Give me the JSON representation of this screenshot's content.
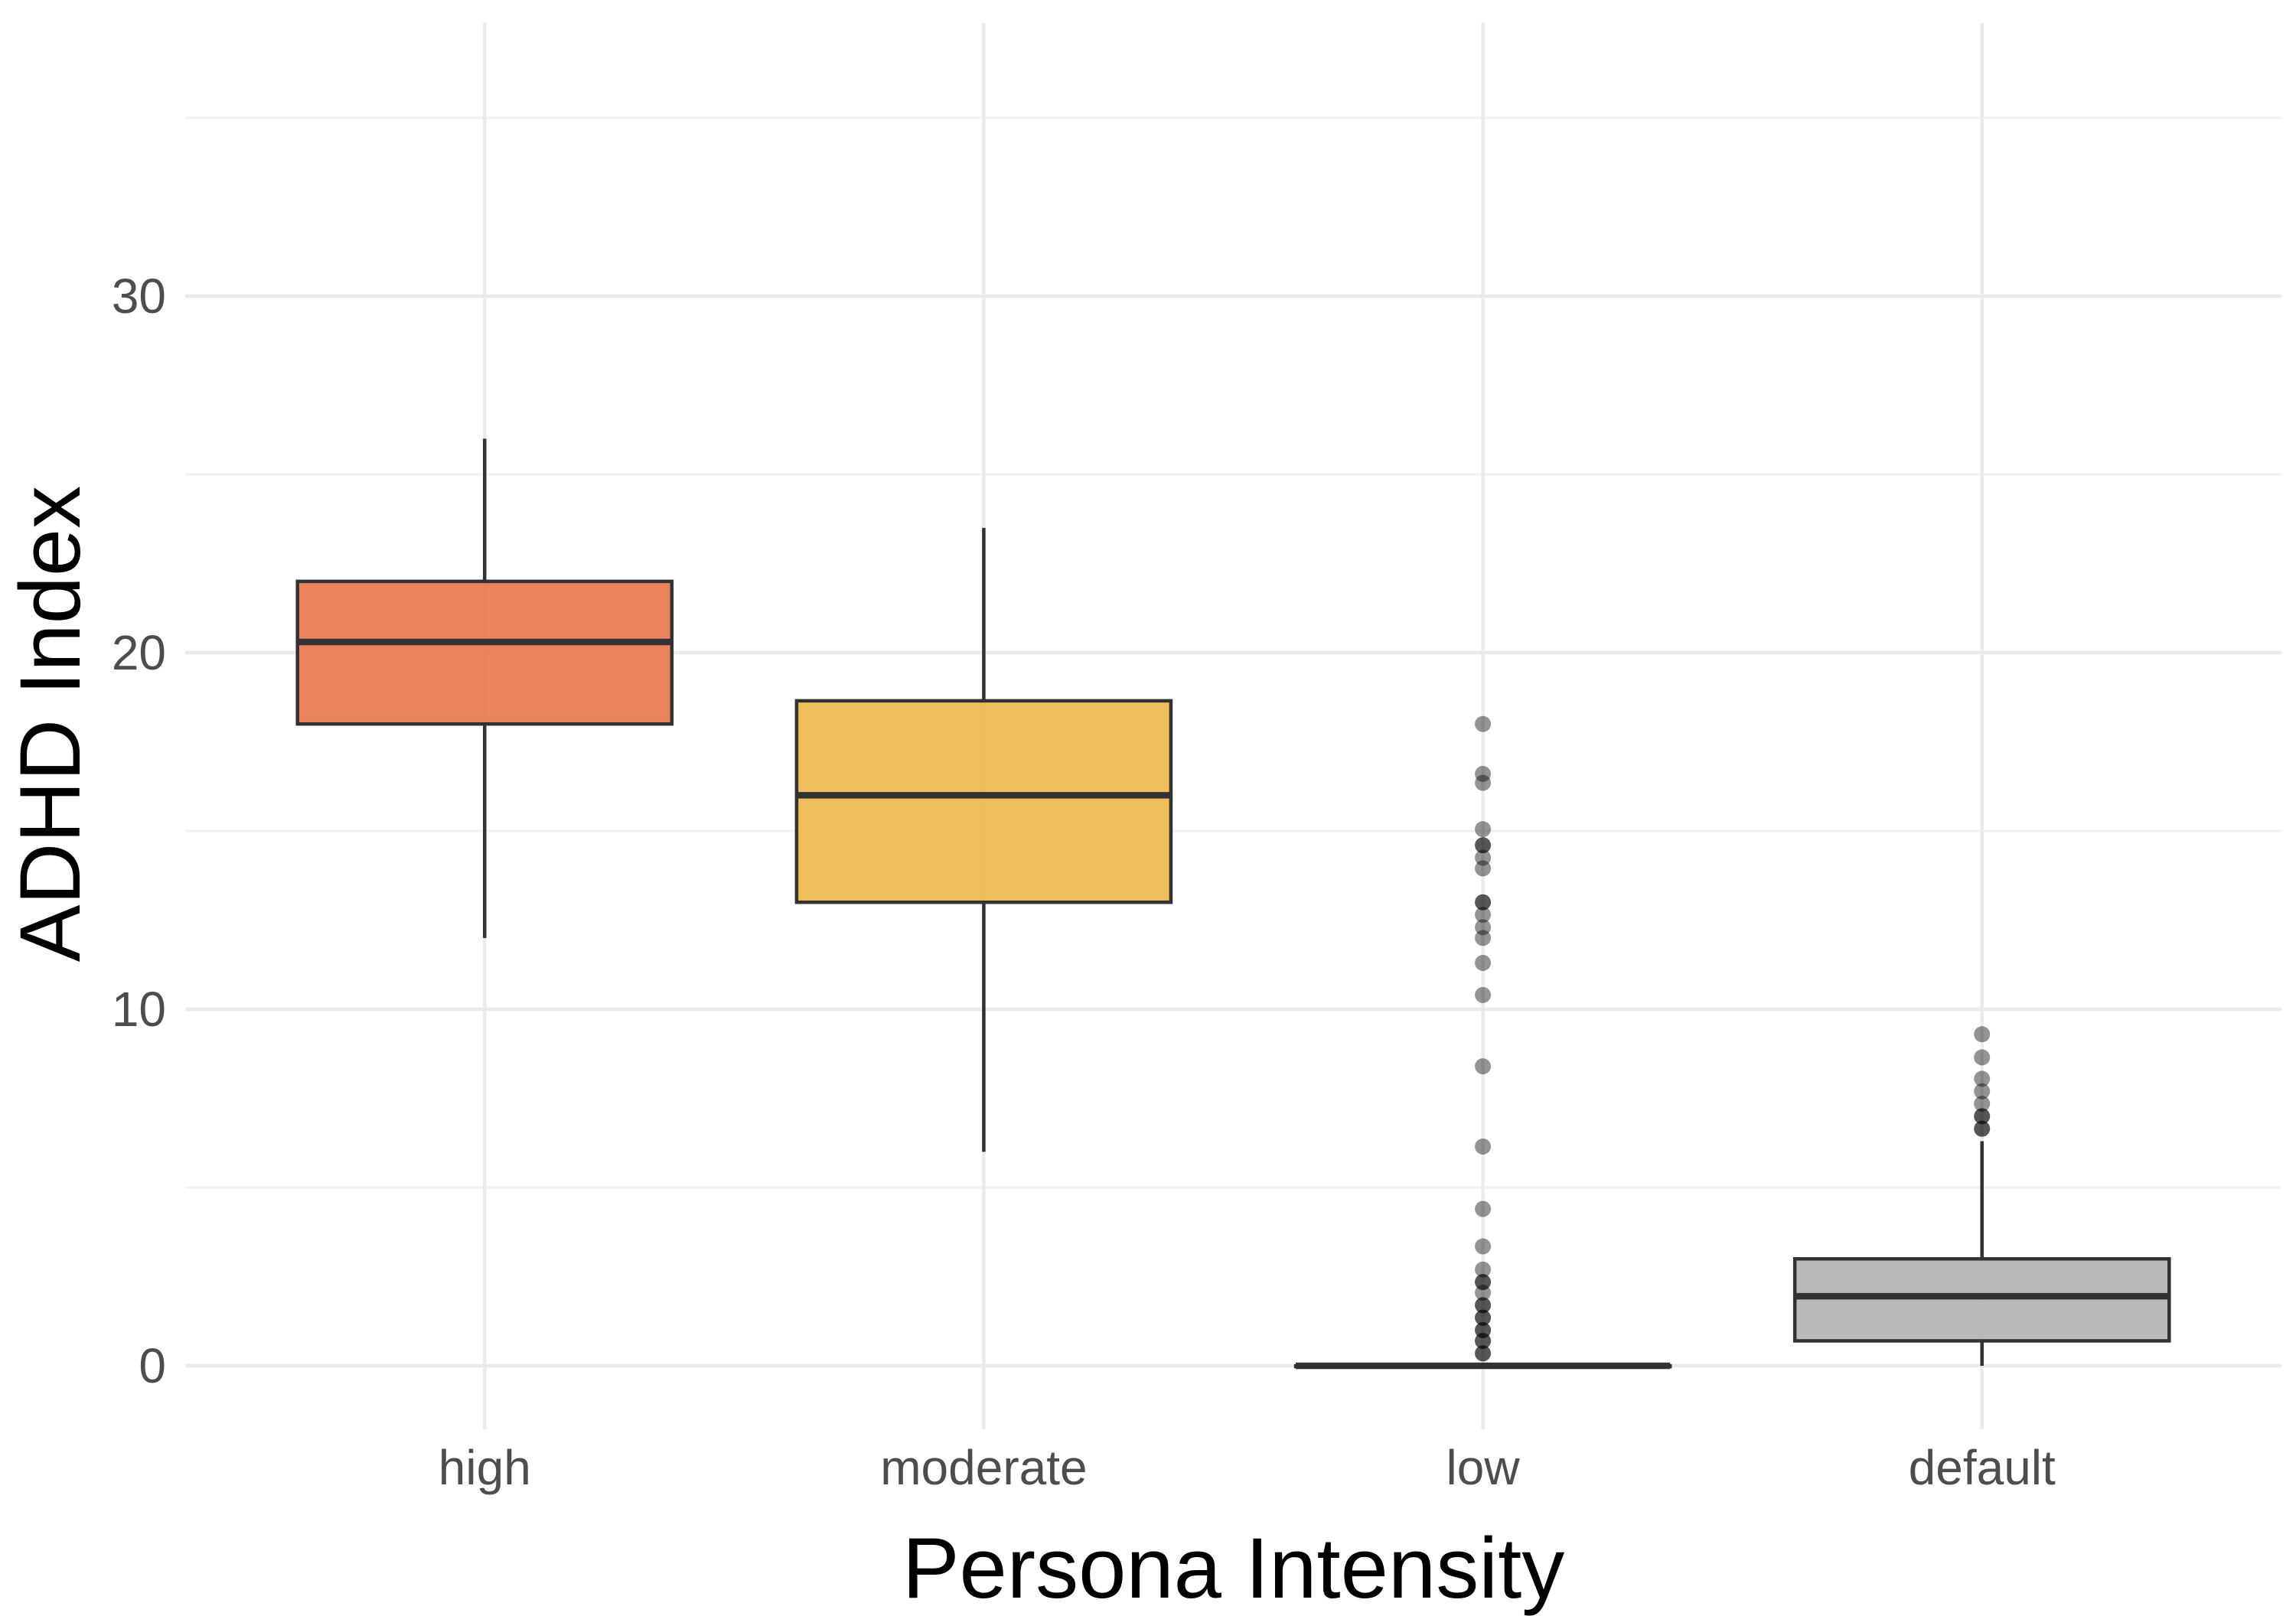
{
  "chart_data": {
    "type": "boxplot",
    "xlabel": "Persona Intensity",
    "ylabel": "ADHD Index",
    "categories": [
      "high",
      "moderate",
      "low",
      "default"
    ],
    "series": [
      {
        "name": "high",
        "fill": "#E8784E",
        "whisker_low": 12.0,
        "q1": 18.0,
        "median": 20.3,
        "q3": 22.0,
        "whisker_high": 26.0,
        "outliers": []
      },
      {
        "name": "moderate",
        "fill": "#ECB94D",
        "whisker_low": 6.0,
        "q1": 13.0,
        "median": 16.0,
        "q3": 18.65,
        "whisker_high": 23.5,
        "outliers": []
      },
      {
        "name": "low",
        "fill": "#B5B5B5",
        "whisker_low": 0,
        "q1": 0,
        "median": 0,
        "q3": 0,
        "whisker_high": 0,
        "outliers": [
          18.0,
          16.6,
          16.35,
          15.05,
          14.6,
          14.6,
          14.25,
          13.95,
          13.0,
          13.0,
          12.65,
          12.3,
          12.0,
          11.3,
          10.4,
          8.4,
          6.15,
          4.4,
          3.35,
          2.7,
          2.35,
          2.35,
          2.05,
          1.7,
          1.7,
          1.35,
          1.35,
          1.0,
          1.0,
          0.7,
          0.7,
          0.35,
          0.35
        ]
      },
      {
        "name": "default",
        "fill": "#B5B5B5",
        "whisker_low": 0.0,
        "q1": 0.7,
        "median": 1.95,
        "q3": 3.0,
        "whisker_high": 6.3,
        "outliers": [
          9.3,
          8.65,
          8.05,
          7.7,
          7.35,
          7.0,
          7.0,
          6.65,
          6.65
        ]
      }
    ],
    "y_axis": {
      "ticks": [
        0,
        10,
        20,
        30
      ],
      "minor_ticks": [
        5,
        15,
        25,
        35
      ],
      "range": [
        -1.78,
        37.66
      ]
    },
    "x_axis": {
      "labels": [
        "high",
        "moderate",
        "low",
        "default"
      ]
    },
    "grid": true,
    "legend": false
  },
  "style": {
    "background": "#FFFFFF",
    "box_border": "#323232",
    "median_color": "#323232",
    "whisker_color": "#323232",
    "outlier_color": "#000000",
    "outlier_opacity": 0.42,
    "grid_major": "#EBEBEB",
    "grid_minor": "#F2F2F2",
    "tick_label_color": "#4D4D4D",
    "axis_title_color": "#000000"
  }
}
